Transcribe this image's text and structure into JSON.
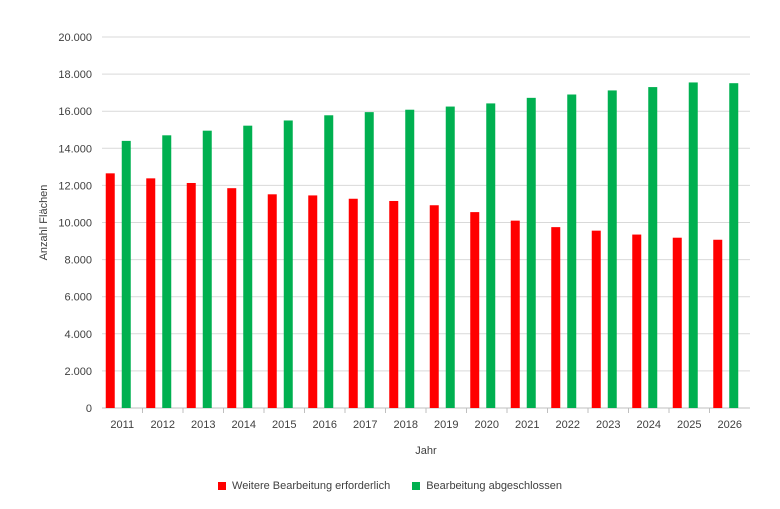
{
  "chart_data": {
    "type": "bar",
    "categories": [
      "2011",
      "2012",
      "2013",
      "2014",
      "2015",
      "2016",
      "2017",
      "2018",
      "2019",
      "2020",
      "2021",
      "2022",
      "2023",
      "2024",
      "2025",
      "2026"
    ],
    "series": [
      {
        "name": "Weitere Bearbeitung erforderlich",
        "color": "#ff0000",
        "values": [
          12650,
          12380,
          12130,
          11850,
          11520,
          11460,
          11280,
          11160,
          10930,
          10560,
          10100,
          9750,
          9560,
          9350,
          9180,
          9070
        ]
      },
      {
        "name": "Bearbeitung abgeschlossen",
        "color": "#00b050",
        "values": [
          14400,
          14700,
          14950,
          15220,
          15500,
          15780,
          15950,
          16080,
          16250,
          16420,
          16720,
          16900,
          17120,
          17300,
          17550,
          17510
        ]
      }
    ],
    "xlabel": "Jahr",
    "ylabel": "Anzahl Flächen",
    "ylim": [
      0,
      20000
    ],
    "yticks": [
      "0",
      "2.000",
      "4.000",
      "6.000",
      "8.000",
      "10.000",
      "12.000",
      "14.000",
      "16.000",
      "18.000",
      "20.000"
    ],
    "grid": true,
    "legend_position": "bottom"
  }
}
